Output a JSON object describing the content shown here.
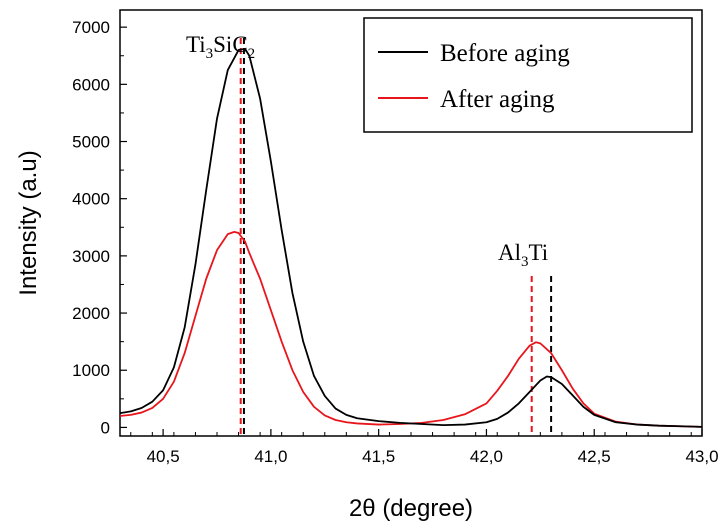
{
  "chart_data": {
    "type": "line",
    "title": "",
    "xlabel": "2θ (degree)",
    "ylabel": "Intensity (a.u)",
    "xlim": [
      40.3,
      43.0
    ],
    "ylim": [
      -150,
      7300
    ],
    "x_ticks": [
      "40,5",
      "41,0",
      "41,5",
      "42,0",
      "42,5",
      "43,0"
    ],
    "y_ticks": [
      "0",
      "1000",
      "2000",
      "3000",
      "4000",
      "5000",
      "6000",
      "7000"
    ],
    "grid": false,
    "legend_position": "top-right",
    "series": [
      {
        "name": "Before aging",
        "color": "#000000",
        "x": [
          40.3,
          40.35,
          40.4,
          40.45,
          40.5,
          40.55,
          40.6,
          40.65,
          40.7,
          40.75,
          40.8,
          40.85,
          40.88,
          40.9,
          40.95,
          41.0,
          41.05,
          41.1,
          41.15,
          41.2,
          41.25,
          41.3,
          41.35,
          41.4,
          41.5,
          41.6,
          41.7,
          41.8,
          41.9,
          42.0,
          42.05,
          42.1,
          42.15,
          42.2,
          42.25,
          42.28,
          42.3,
          42.35,
          42.4,
          42.45,
          42.5,
          42.6,
          42.7,
          42.8,
          42.9,
          43.0
        ],
        "values": [
          250,
          280,
          340,
          450,
          650,
          1050,
          1750,
          2850,
          4150,
          5400,
          6250,
          6600,
          6620,
          6500,
          5750,
          4650,
          3450,
          2350,
          1500,
          900,
          550,
          330,
          220,
          160,
          110,
          80,
          60,
          40,
          50,
          90,
          150,
          260,
          420,
          620,
          820,
          890,
          880,
          760,
          560,
          360,
          220,
          90,
          50,
          30,
          20,
          10
        ]
      },
      {
        "name": "After aging",
        "color": "#e8161c",
        "x": [
          40.3,
          40.35,
          40.4,
          40.45,
          40.5,
          40.55,
          40.6,
          40.65,
          40.7,
          40.75,
          40.8,
          40.83,
          40.85,
          40.88,
          40.9,
          40.95,
          41.0,
          41.05,
          41.1,
          41.15,
          41.2,
          41.25,
          41.3,
          41.35,
          41.4,
          41.5,
          41.6,
          41.7,
          41.8,
          41.9,
          42.0,
          42.05,
          42.1,
          42.15,
          42.2,
          42.23,
          42.25,
          42.3,
          42.35,
          42.4,
          42.45,
          42.5,
          42.6,
          42.7,
          42.8,
          42.9,
          43.0
        ],
        "values": [
          200,
          220,
          260,
          340,
          500,
          800,
          1300,
          1950,
          2600,
          3100,
          3380,
          3420,
          3400,
          3250,
          3050,
          2600,
          2050,
          1500,
          1000,
          620,
          360,
          210,
          130,
          90,
          70,
          50,
          60,
          80,
          130,
          230,
          420,
          640,
          900,
          1200,
          1430,
          1490,
          1470,
          1300,
          1000,
          680,
          420,
          240,
          100,
          50,
          30,
          20,
          10
        ]
      }
    ],
    "annotations": [
      {
        "label_parts": [
          "Ti",
          "3",
          "SiC",
          "2"
        ],
        "x": 40.87,
        "peak_lines": [
          {
            "x": 40.86,
            "color": "#e8161c"
          },
          {
            "x": 40.875,
            "color": "#000000"
          }
        ]
      },
      {
        "label_parts": [
          "Al",
          "3",
          "Ti"
        ],
        "x": 42.25,
        "peak_lines": [
          {
            "x": 42.21,
            "color": "#e8161c"
          },
          {
            "x": 42.3,
            "color": "#000000"
          }
        ]
      }
    ]
  }
}
